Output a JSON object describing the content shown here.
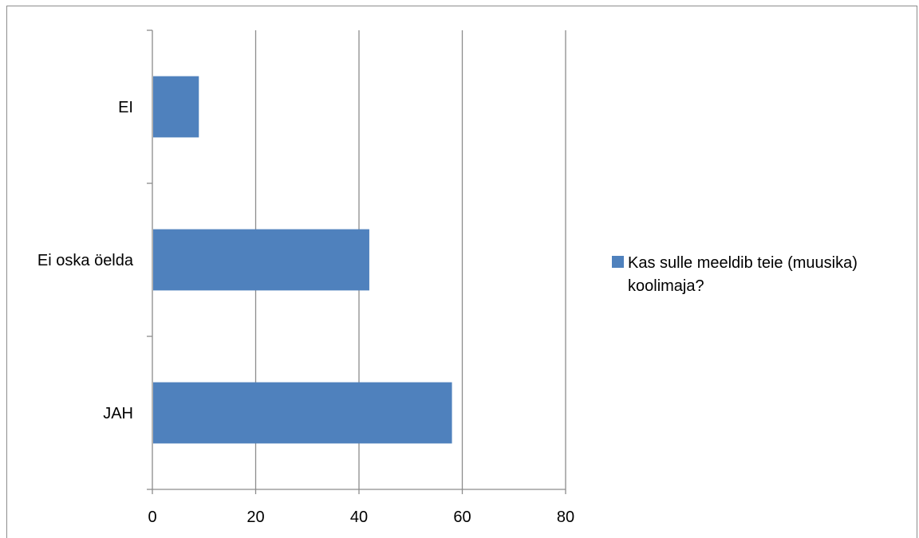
{
  "chart_data": {
    "type": "bar",
    "orientation": "horizontal",
    "categories": [
      "JAH",
      "Ei oska öelda",
      "EI"
    ],
    "series": [
      {
        "name": "Kas sulle meeldib teie (muusika) koolimaja?",
        "values": [
          58,
          42,
          9
        ],
        "color": "#4f81bd"
      }
    ],
    "xlim": [
      0,
      80
    ],
    "x_ticks": [
      0,
      20,
      40,
      60,
      80
    ],
    "grid": "vertical",
    "legend": {
      "position": "right",
      "lines": [
        "Kas sulle meeldib teie (muusika)",
        "koolimaja?"
      ]
    },
    "title": "",
    "xlabel": "",
    "ylabel": ""
  }
}
